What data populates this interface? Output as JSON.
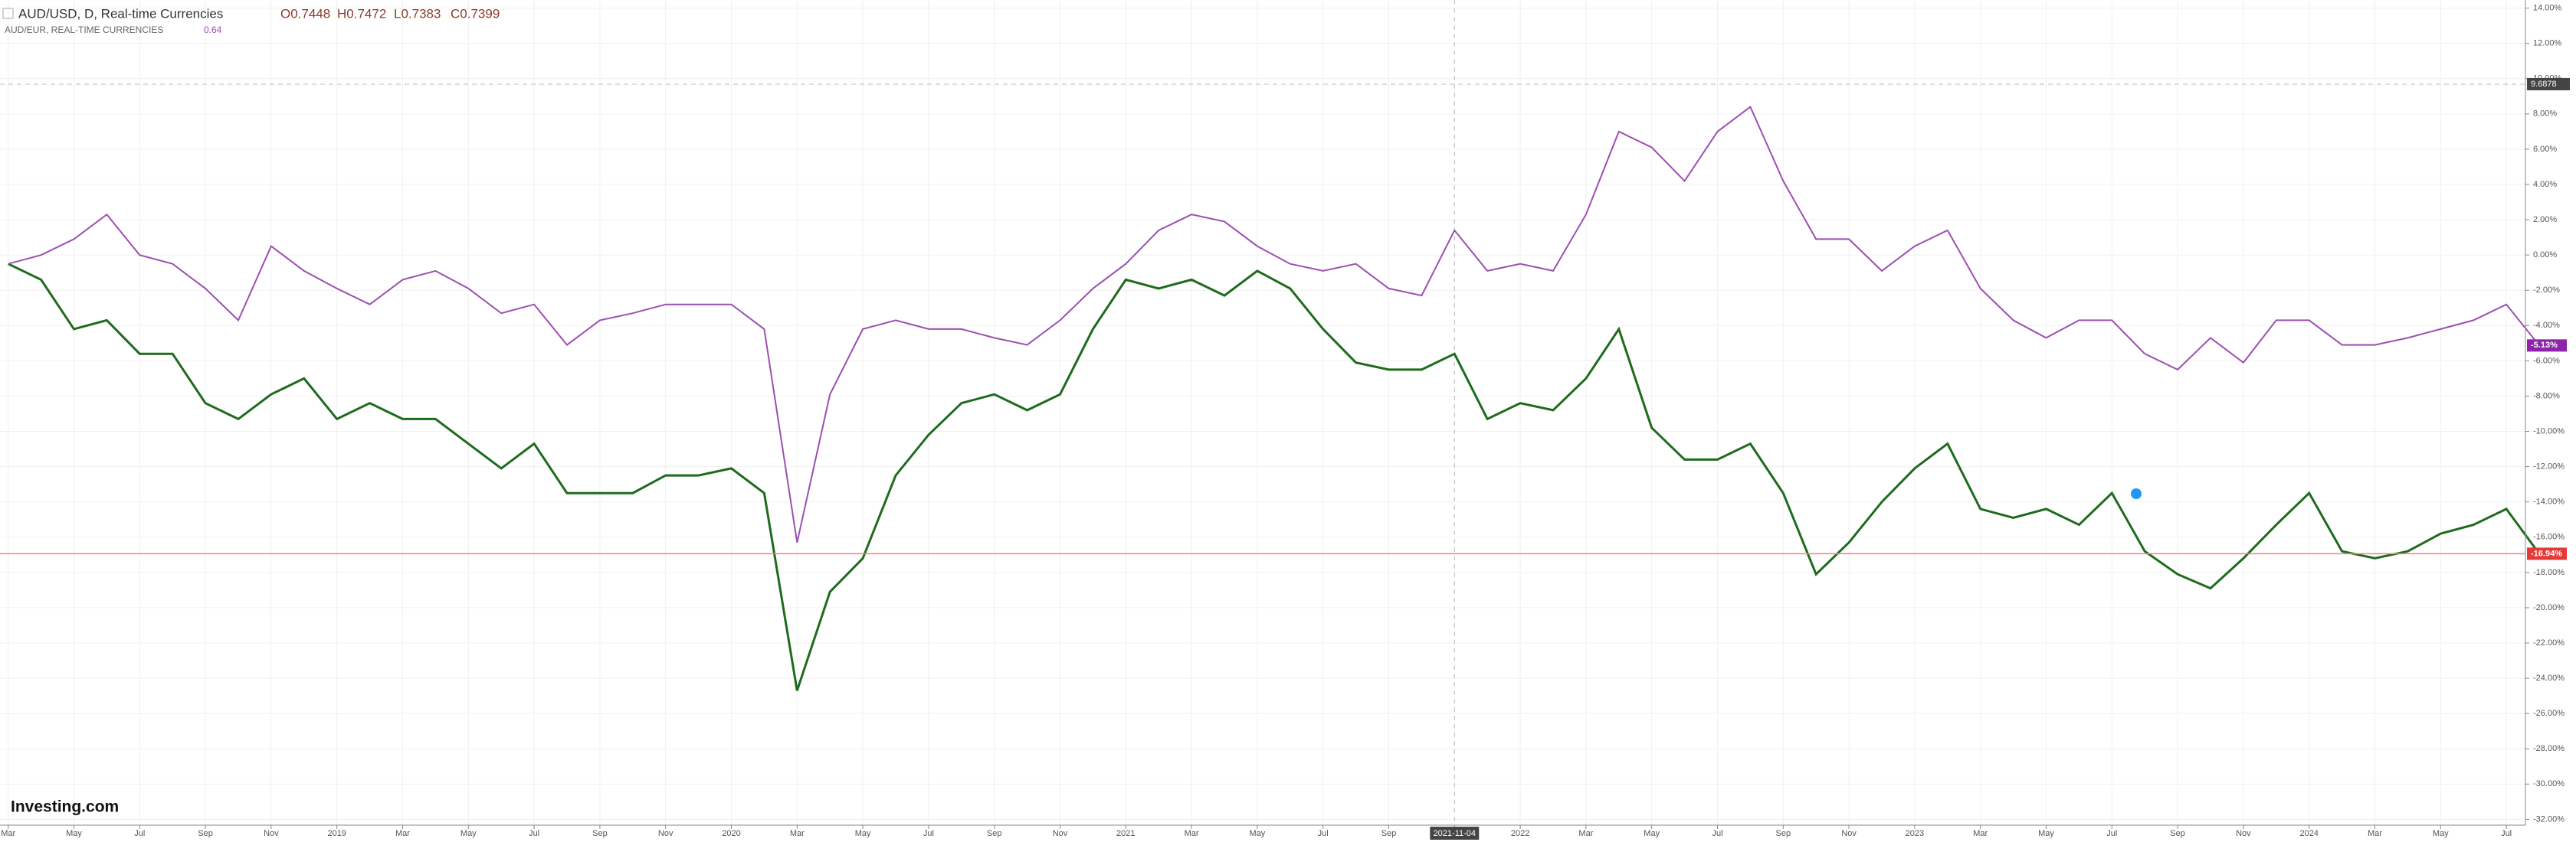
{
  "header": {
    "symbol": "AUD/USD, D, Real-time Currencies",
    "open": "O0.7448",
    "high": "H0.7472",
    "low": "L0.7383",
    "close": "C0.7399",
    "compare": "AUD/EUR, REAL-TIME CURRENCIES",
    "compare_price": "0.64"
  },
  "logo": "Investing.com",
  "chart_data": {
    "type": "line",
    "categories": [
      "Mar",
      null,
      "May",
      null,
      "Jul",
      null,
      "Sep",
      null,
      "Nov",
      null,
      "2019",
      null,
      "Mar",
      null,
      "May",
      null,
      "Jul",
      null,
      "Sep",
      null,
      "Nov",
      null,
      "2020",
      null,
      "Mar",
      null,
      "May",
      null,
      "Jul",
      null,
      "Sep",
      null,
      "Nov",
      null,
      "2021",
      null,
      "Mar",
      null,
      "May",
      null,
      "Jul",
      null,
      "Sep",
      null,
      "2021-11-04",
      null,
      "2022",
      null,
      "Mar",
      null,
      "May",
      null,
      "Jul",
      null,
      "Sep",
      null,
      "Nov",
      null,
      "2023",
      null,
      "Mar",
      null,
      "May",
      null,
      "Jul",
      null,
      "Sep",
      null,
      "Nov",
      null,
      "2024",
      null,
      "Mar",
      null,
      "May",
      null,
      "Jul",
      null
    ],
    "series": [
      {
        "name": "AUD/USD",
        "color": "#1e6b1e",
        "values": [
          -0.5,
          -1.4,
          -4.2,
          -3.7,
          -5.6,
          -5.6,
          -8.4,
          -9.3,
          -7.9,
          -7,
          -9.3,
          -8.4,
          -9.3,
          -9.3,
          -10.7,
          -12.1,
          -10.7,
          -13.5,
          -13.5,
          -13.5,
          -12.5,
          -12.5,
          -12.1,
          -13.5,
          -24.7,
          -19.1,
          -17.2,
          -12.5,
          -10.2,
          -8.4,
          -7.9,
          -8.8,
          -7.9,
          -4.2,
          -1.4,
          -1.9,
          -1.4,
          -2.3,
          -0.9,
          -1.9,
          -4.2,
          -6.1,
          -6.5,
          -6.5,
          -5.6,
          -9.3,
          -8.4,
          -8.8,
          -7,
          -4.2,
          -9.8,
          -11.6,
          -11.6,
          -10.7,
          -13.5,
          -18.1,
          -16.3,
          -14,
          -12.1,
          -10.7,
          -14.4,
          -14.9,
          -14.4,
          -15.3,
          -13.5,
          -16.8,
          -18.1,
          -18.9,
          -17.2,
          -15.3,
          -13.5,
          -16.8,
          -17.2,
          -16.8,
          -15.8,
          -15.3,
          -14.4,
          -16.94
        ],
        "value_labels": [
          null,
          null,
          null,
          null,
          null,
          null,
          null,
          null,
          null,
          null,
          null,
          null,
          null,
          null,
          null,
          null,
          null,
          null,
          null,
          null,
          null,
          null,
          null,
          null,
          null,
          null,
          null,
          null,
          null,
          null,
          null,
          null,
          null,
          null,
          null,
          null,
          null,
          null,
          null,
          null,
          null,
          null,
          null,
          null,
          null,
          null,
          null,
          null,
          null,
          null,
          null,
          null,
          null,
          null,
          null,
          null,
          null,
          null,
          null,
          null,
          null,
          null,
          null,
          null,
          null,
          null,
          null,
          null,
          null,
          null,
          null,
          null,
          null,
          null,
          null,
          null,
          null,
          "-16.94%"
        ]
      },
      {
        "name": "AUD/EUR",
        "color": "#9c4fb0",
        "values": [
          -0.5,
          0,
          0.9,
          2.3,
          0,
          -0.5,
          -1.9,
          -3.7,
          0.5,
          -0.9,
          -1.9,
          -2.8,
          -1.4,
          -0.9,
          -1.9,
          -3.3,
          -2.8,
          -5.1,
          -3.7,
          -3.3,
          -2.8,
          -2.8,
          -2.8,
          -4.2,
          -16.3,
          -7.9,
          -4.2,
          -3.7,
          -4.2,
          -4.2,
          -4.7,
          -5.1,
          -3.7,
          -1.9,
          -0.5,
          1.4,
          2.3,
          1.9,
          0.5,
          -0.5,
          -0.9,
          -0.5,
          -1.9,
          -2.3,
          1.4,
          -0.9,
          -0.5,
          -0.9,
          2.3,
          7,
          6.1,
          4.2,
          7,
          8.4,
          4.2,
          0.9,
          0.9,
          -0.9,
          0.5,
          1.4,
          -1.9,
          -3.7,
          -4.7,
          -3.7,
          -3.7,
          -5.6,
          -6.5,
          -4.7,
          -6.1,
          -3.7,
          -3.7,
          -5.1,
          -5.1,
          -4.7,
          -4.2,
          -3.7,
          -2.8,
          -5.13
        ],
        "value_labels": [
          null,
          null,
          null,
          null,
          null,
          null,
          null,
          null,
          null,
          null,
          null,
          null,
          null,
          null,
          null,
          null,
          null,
          null,
          null,
          null,
          null,
          null,
          null,
          null,
          null,
          null,
          null,
          null,
          null,
          null,
          null,
          null,
          null,
          null,
          null,
          null,
          null,
          null,
          null,
          null,
          null,
          null,
          null,
          null,
          null,
          null,
          null,
          null,
          null,
          null,
          null,
          null,
          null,
          null,
          null,
          null,
          null,
          null,
          null,
          null,
          null,
          null,
          null,
          null,
          null,
          null,
          null,
          null,
          null,
          null,
          null,
          null,
          null,
          null,
          null,
          null,
          null,
          "-5.13%"
        ]
      }
    ],
    "ylim": [
      14.2,
      -32.2
    ],
    "yticks": [
      {
        "value": 14,
        "label": "14.00%"
      },
      {
        "value": 12,
        "label": "12.00%"
      },
      {
        "value": 10,
        "label": "10.00%"
      },
      {
        "value": 8,
        "label": "8.00%"
      },
      {
        "value": 6,
        "label": "6.00%"
      },
      {
        "value": 4,
        "label": "4.00%"
      },
      {
        "value": 2,
        "label": "2.00%"
      },
      {
        "value": 0,
        "label": "0.00%"
      },
      {
        "value": -2,
        "label": "-2.00%"
      },
      {
        "value": -4,
        "label": "-4.00%"
      },
      {
        "value": -6,
        "label": "-6.00%"
      },
      {
        "value": -8,
        "label": "-8.00%"
      },
      {
        "value": -10,
        "label": "-10.00%"
      },
      {
        "value": -12,
        "label": "-12.00%"
      },
      {
        "value": -14,
        "label": "-14.00%"
      },
      {
        "value": -16,
        "label": "-16.00%"
      },
      {
        "value": -18,
        "label": "-18.00%"
      },
      {
        "value": -20,
        "label": "-20.00%"
      },
      {
        "value": -22,
        "label": "-22.00%"
      },
      {
        "value": -24,
        "label": "-24.00%"
      },
      {
        "value": -26,
        "label": "-26.00%"
      },
      {
        "value": -28,
        "label": "-28.00%"
      },
      {
        "value": -30,
        "label": "-30.00%"
      },
      {
        "value": -32,
        "label": "-32.00%"
      }
    ],
    "crosshair_y": 9.6878,
    "grid": true
  }
}
